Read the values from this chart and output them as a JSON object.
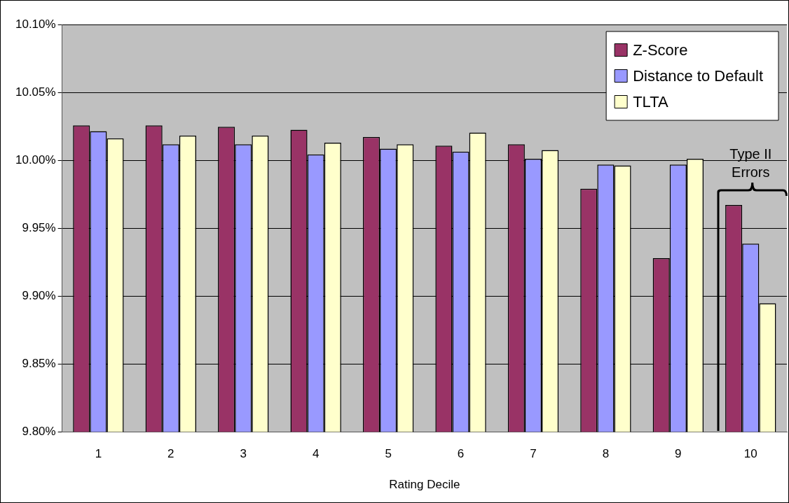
{
  "chart_data": {
    "type": "bar",
    "xlabel": "Rating Decile",
    "categories": [
      "1",
      "2",
      "3",
      "4",
      "5",
      "6",
      "7",
      "8",
      "9",
      "10"
    ],
    "series": [
      {
        "name": "Z-Score",
        "color": "#993366",
        "values": [
          10.0257,
          10.0257,
          10.0247,
          10.0225,
          10.0172,
          10.0107,
          10.0118,
          9.9791,
          9.9279,
          9.967
        ]
      },
      {
        "name": "Distance to Default",
        "color": "#9999ff",
        "values": [
          10.0214,
          10.0118,
          10.0118,
          10.0043,
          10.0086,
          10.0064,
          10.0011,
          9.9968,
          9.9968,
          9.9386
        ]
      },
      {
        "name": "TLTA",
        "color": "#ffffcc",
        "values": [
          10.0161,
          10.0182,
          10.0182,
          10.0129,
          10.0118,
          10.0204,
          10.0075,
          9.9962,
          10.0011,
          9.8946
        ]
      }
    ],
    "ylim": [
      9.8,
      10.1
    ],
    "yticks": [
      {
        "value": 9.8,
        "label": "9.80%"
      },
      {
        "value": 9.85,
        "label": "9.85%"
      },
      {
        "value": 9.9,
        "label": "9.90%"
      },
      {
        "value": 9.95,
        "label": "9.95%"
      },
      {
        "value": 10.0,
        "label": "10.00%"
      },
      {
        "value": 10.05,
        "label": "10.05%"
      },
      {
        "value": 10.1,
        "label": "10.10%"
      }
    ],
    "grid": "y",
    "legend": "top right",
    "annotations": [
      "Type II\nErrors"
    ]
  }
}
